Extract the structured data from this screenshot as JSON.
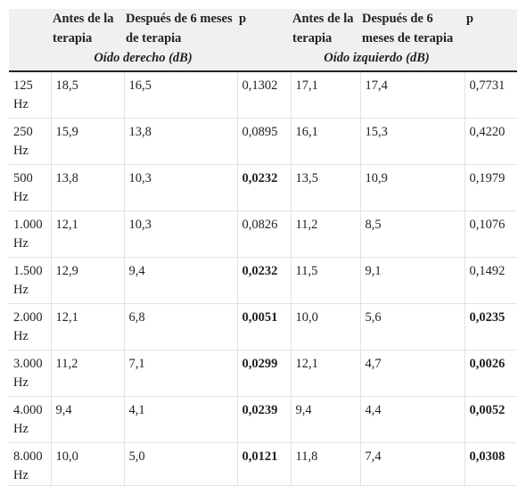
{
  "header": {
    "right_columns": [
      {
        "before": "Antes de la terapia",
        "after": "Después de 6 meses de terapia",
        "p": "p"
      },
      {
        "before": "Antes de la terapia",
        "after": "Después de 6 meses de terapia",
        "p": "p"
      }
    ],
    "groups": [
      "Oído derecho (dB)",
      "Oído izquierdo (dB)"
    ]
  },
  "rows": [
    {
      "freq": "125 Hz",
      "r_before": "18,5",
      "r_after": "16,5",
      "r_p": "0,1302",
      "r_p_bold": false,
      "l_before": "17,1",
      "l_after": "17,4",
      "l_p": "0,7731",
      "l_p_bold": false
    },
    {
      "freq": "250 Hz",
      "r_before": "15,9",
      "r_after": "13,8",
      "r_p": "0,0895",
      "r_p_bold": false,
      "l_before": "16,1",
      "l_after": "15,3",
      "l_p": "0,4220",
      "l_p_bold": false
    },
    {
      "freq": "500 Hz",
      "r_before": "13,8",
      "r_after": "10,3",
      "r_p": "0,0232",
      "r_p_bold": true,
      "l_before": "13,5",
      "l_after": "10,9",
      "l_p": "0,1979",
      "l_p_bold": false
    },
    {
      "freq": "1.000 Hz",
      "r_before": "12,1",
      "r_after": "10,3",
      "r_p": "0,0826",
      "r_p_bold": false,
      "l_before": "11,2",
      "l_after": "8,5",
      "l_p": "0,1076",
      "l_p_bold": false
    },
    {
      "freq": "1.500 Hz",
      "r_before": "12,9",
      "r_after": "9,4",
      "r_p": "0,0232",
      "r_p_bold": true,
      "l_before": "11,5",
      "l_after": "9,1",
      "l_p": "0,1492",
      "l_p_bold": false
    },
    {
      "freq": "2.000 Hz",
      "r_before": "12,1",
      "r_after": "6,8",
      "r_p": "0,0051",
      "r_p_bold": true,
      "l_before": "10,0",
      "l_after": "5,6",
      "l_p": "0,0235",
      "l_p_bold": true
    },
    {
      "freq": "3.000 Hz",
      "r_before": "11,2",
      "r_after": "7,1",
      "r_p": "0,0299",
      "r_p_bold": true,
      "l_before": "12,1",
      "l_after": "4,7",
      "l_p": "0,0026",
      "l_p_bold": true
    },
    {
      "freq": "4.000 Hz",
      "r_before": "9,4",
      "r_after": "4,1",
      "r_p": "0,0239",
      "r_p_bold": true,
      "l_before": "9,4",
      "l_after": "4,4",
      "l_p": "0,0052",
      "l_p_bold": true
    },
    {
      "freq": "8.000 Hz",
      "r_before": "10,0",
      "r_after": "5,0",
      "r_p": "0,0121",
      "r_p_bold": true,
      "l_before": "11,8",
      "l_after": "7,4",
      "l_p": "0,0308",
      "l_p_bold": true
    }
  ]
}
